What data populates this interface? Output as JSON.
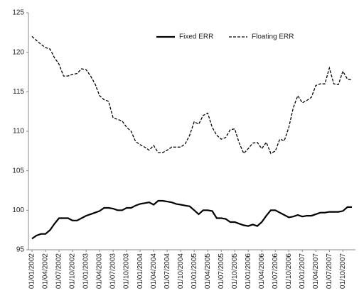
{
  "chart_data": {
    "type": "line",
    "categories": [
      "01/01/2002",
      null,
      null,
      "01/04/2002",
      null,
      null,
      "01/07/2002",
      null,
      null,
      "01/10/2002",
      null,
      null,
      "01/01/2003",
      null,
      null,
      "01/04/2003",
      null,
      null,
      "01/07/2003",
      null,
      null,
      "01/10/2003",
      null,
      null,
      "01/01/2004",
      null,
      null,
      "01/04/2004",
      null,
      null,
      "01/07/2004",
      null,
      null,
      "01/10/2004",
      null,
      null,
      "01/01/2005",
      null,
      null,
      "01/04/2005",
      null,
      null,
      "01/07/2005",
      null,
      null,
      "01/10/2005",
      null,
      null,
      "01/01/2006",
      null,
      null,
      "01/04/2006",
      null,
      null,
      "01/07/2006",
      null,
      null,
      "01/10/2006",
      null,
      null,
      "01/01/2007",
      null,
      null,
      "01/04/2007",
      null,
      null,
      "01/07/2007",
      null,
      null,
      "01/10/2007",
      null,
      null
    ],
    "series": [
      {
        "name": "Fixed ERR",
        "color": "#000000",
        "dash": false,
        "values": [
          96.4,
          96.8,
          97,
          97,
          97.5,
          98.3,
          99,
          99,
          99,
          98.7,
          98.7,
          99,
          99.3,
          99.5,
          99.7,
          99.9,
          100.3,
          100.3,
          100.2,
          100,
          100,
          100.3,
          100.3,
          100.6,
          100.8,
          100.9,
          101,
          100.7,
          101.2,
          101.2,
          101.1,
          101,
          100.8,
          100.7,
          100.6,
          100.5,
          100,
          99.5,
          100,
          100,
          99.9,
          99,
          99,
          98.9,
          98.5,
          98.5,
          98.3,
          98.1,
          98,
          98.2,
          98,
          98.5,
          99.3,
          100,
          100,
          99.7,
          99.4,
          99.1,
          99.2,
          99.4,
          99.2,
          99.3,
          99.3,
          99.5,
          99.7,
          99.7,
          99.8,
          99.8,
          99.8,
          99.9,
          100.4,
          100.4
        ]
      },
      {
        "name": "Floating ERR",
        "color": "#000000",
        "dash": true,
        "values": [
          122,
          121.5,
          121,
          120.6,
          120.4,
          119.3,
          118.5,
          117,
          117,
          117.2,
          117.3,
          117.9,
          117.8,
          117,
          116,
          114.5,
          114,
          113.8,
          111.7,
          111.5,
          111.3,
          110.5,
          110,
          108.7,
          108.3,
          108,
          107.6,
          108.2,
          107.3,
          107.3,
          107.6,
          108,
          108,
          108,
          108.4,
          109.5,
          111.2,
          110.9,
          112,
          112.3,
          110.5,
          109.5,
          109,
          109.2,
          110.2,
          110.3,
          108.5,
          107.2,
          107.8,
          108.5,
          108.6,
          107.8,
          108.6,
          107.2,
          107.5,
          109,
          108.8,
          110.5,
          113,
          114.5,
          113.6,
          113.9,
          114.3,
          115.8,
          116,
          116,
          118,
          116,
          115.9,
          117.6,
          116.6,
          116.5
        ]
      }
    ],
    "ylim": [
      95,
      125
    ],
    "yticks": [
      95,
      100,
      105,
      110,
      115,
      120,
      125
    ],
    "grid": false,
    "legend": "top"
  }
}
